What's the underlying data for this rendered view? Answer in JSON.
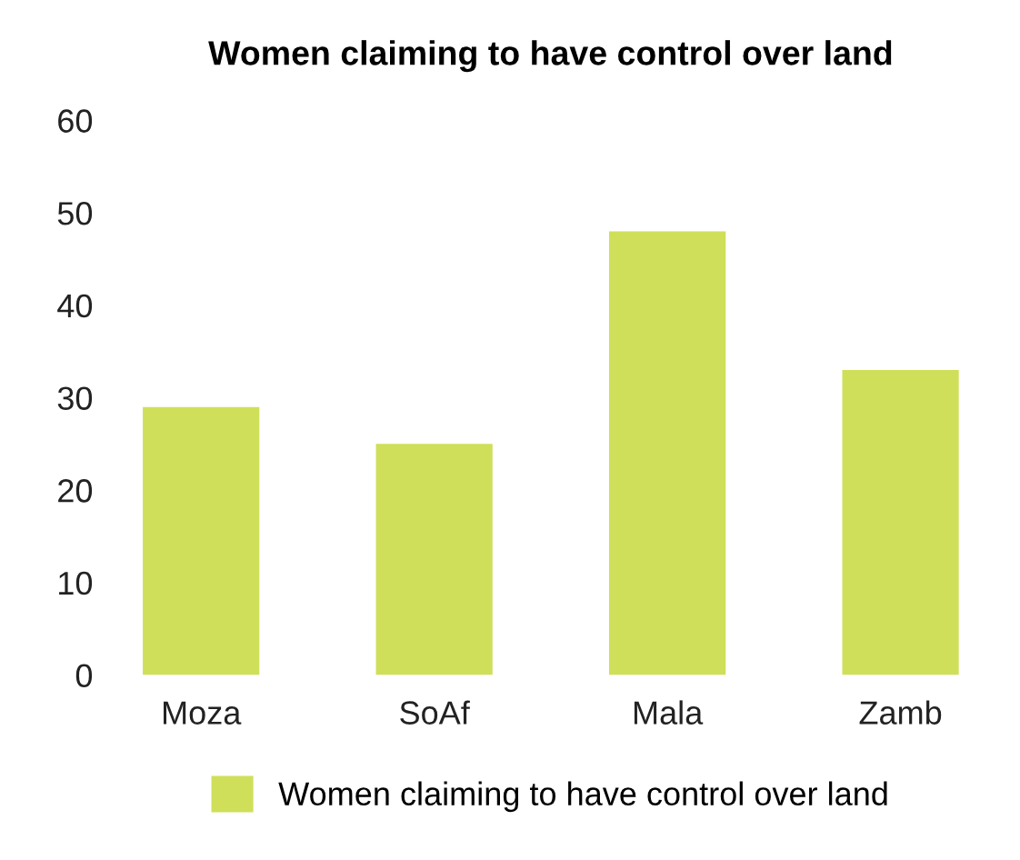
{
  "chart_data": {
    "type": "bar",
    "title": "Women claiming to have control over land",
    "categories": [
      "Moza",
      "SoAf",
      "Mala",
      "Zamb"
    ],
    "series": [
      {
        "name": "Women claiming to have control over land",
        "color": "#cfdf5a",
        "values": [
          29,
          25,
          48,
          33
        ]
      }
    ],
    "ylim": [
      0,
      60
    ],
    "yticks": [
      0,
      10,
      20,
      30,
      40,
      50,
      60
    ],
    "grid": false,
    "legend": "bottom"
  }
}
